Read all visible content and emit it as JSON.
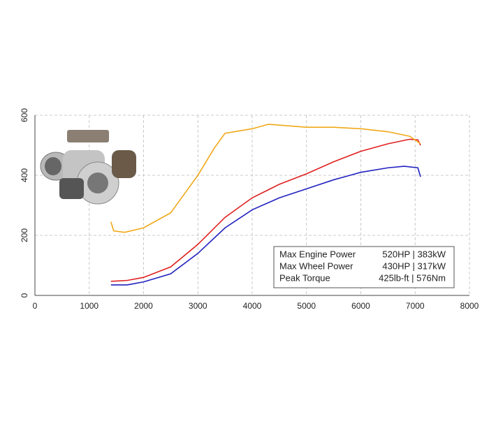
{
  "chart_data": {
    "type": "line",
    "xlim": [
      0,
      8000
    ],
    "xticks": [
      0,
      1000,
      2000,
      3000,
      4000,
      5000,
      6000,
      7000,
      8000
    ],
    "ylim": [
      0,
      600
    ],
    "yticks": [
      0,
      200,
      400,
      600
    ],
    "grid": true,
    "legend": "lower right",
    "series": [
      {
        "name": "Max Engine Power",
        "peak": "520HP | 383kW",
        "color": "#e02020",
        "x": [
          1400,
          1700,
          2000,
          2500,
          3000,
          3500,
          4000,
          4500,
          5000,
          5500,
          6000,
          6500,
          6900,
          7050,
          7100
        ],
        "values": [
          47,
          50,
          60,
          95,
          170,
          260,
          325,
          370,
          405,
          445,
          480,
          505,
          520,
          518,
          500
        ]
      },
      {
        "name": "Max Wheel Power",
        "peak": "430HP | 317kW",
        "color": "#2020c0",
        "x": [
          1400,
          1700,
          2000,
          2500,
          3000,
          3500,
          4000,
          4500,
          5000,
          5500,
          6000,
          6500,
          6800,
          7050,
          7100
        ],
        "values": [
          35,
          35,
          45,
          72,
          140,
          225,
          285,
          325,
          355,
          385,
          410,
          425,
          430,
          425,
          395
        ]
      },
      {
        "name": "Peak Torque",
        "peak": "425lb-ft | 576Nm",
        "color": "#f0a818",
        "x": [
          1400,
          1450,
          1650,
          2000,
          2500,
          3000,
          3300,
          3500,
          4000,
          4300,
          5000,
          5500,
          6000,
          6500,
          6900,
          7100
        ],
        "values": [
          245,
          215,
          210,
          225,
          275,
          400,
          490,
          540,
          555,
          570,
          560,
          560,
          555,
          545,
          530,
          505
        ]
      }
    ]
  }
}
